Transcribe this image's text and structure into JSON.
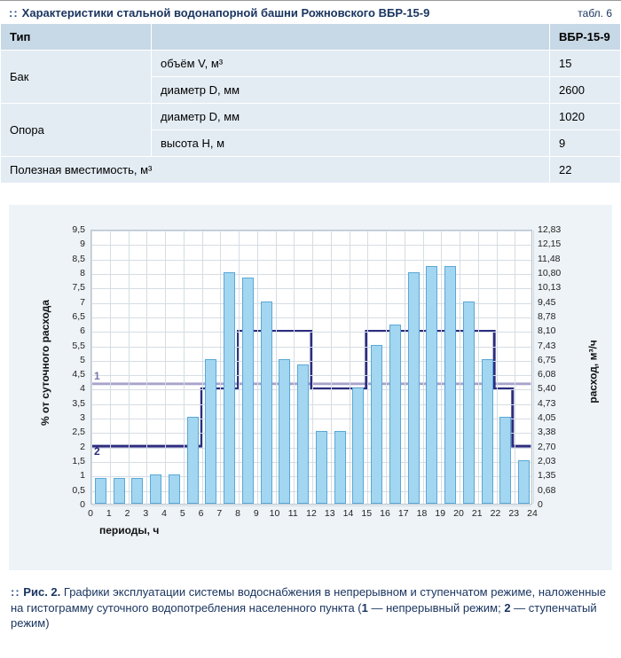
{
  "table": {
    "title": "Характеристики стальной водонапорной башни Рожновского ВБР-15-9",
    "label": "табл. 6",
    "head": {
      "c1": "Тип",
      "c4": "ВБР-15-9"
    },
    "rows": [
      {
        "g": "Бак",
        "p": "объём V, м³",
        "v": "15"
      },
      {
        "g": "",
        "p": "диаметр D, мм",
        "v": "2600"
      },
      {
        "g": "Опора",
        "p": "диаметр D, мм",
        "v": "1020"
      },
      {
        "g": "",
        "p": "высота H, м",
        "v": "9"
      }
    ],
    "footer": {
      "p": "Полезная вместимость, м³",
      "v": "22"
    }
  },
  "chart": {
    "type": "bar+line",
    "x_periods": [
      0,
      1,
      2,
      3,
      4,
      5,
      6,
      7,
      8,
      9,
      10,
      11,
      12,
      13,
      14,
      15,
      16,
      17,
      18,
      19,
      20,
      21,
      22,
      23,
      24
    ],
    "y_left": {
      "min": 0,
      "max": 9.5,
      "step": 0.5,
      "ticks": [
        "0",
        "0,5",
        "1",
        "1,5",
        "2",
        "2,5",
        "3",
        "3,5",
        "4",
        "4,5",
        "5",
        "5,5",
        "6",
        "6,5",
        "7",
        "7,5",
        "8",
        "8,5",
        "9",
        "9,5"
      ],
      "label": "% от суточного расхода"
    },
    "y_right": {
      "ticks": [
        "0",
        "0,68",
        "1,35",
        "2,03",
        "2,70",
        "3,38",
        "4,05",
        "4,73",
        "5,40",
        "6,08",
        "6,75",
        "7,43",
        "8,10",
        "8,78",
        "9,45",
        "10,13",
        "10,80",
        "11,48",
        "12,15",
        "12,83"
      ],
      "label": "расход, м³/ч"
    },
    "x_label": "периоды, ч",
    "bars": {
      "values": [
        0.9,
        0.9,
        0.9,
        1,
        1,
        3,
        5,
        8,
        7.8,
        7,
        5,
        4.8,
        2.5,
        2.5,
        4,
        5.5,
        6.2,
        8,
        8.2,
        8.2,
        7,
        5,
        3,
        1.5
      ],
      "fill": "#a3d6f0",
      "stroke": "#5aa8d6",
      "width_frac": 0.62
    },
    "line1": {
      "value": 4.17,
      "color": "#a7a3cc",
      "width": 3,
      "label": "1"
    },
    "line2": {
      "points": [
        [
          0,
          2
        ],
        [
          6,
          2
        ],
        [
          6,
          4
        ],
        [
          8,
          4
        ],
        [
          8,
          6
        ],
        [
          12,
          6
        ],
        [
          12,
          4
        ],
        [
          15,
          4
        ],
        [
          15,
          6
        ],
        [
          22,
          6
        ],
        [
          22,
          4
        ],
        [
          23,
          4
        ],
        [
          23,
          2
        ],
        [
          24,
          2
        ]
      ],
      "color": "#2c2c80",
      "width": 3,
      "label": "2"
    },
    "background": "#ffffff",
    "panel_bg": "#eef3f7",
    "grid_color": "#d5dde4",
    "label_fontsize": 10.5,
    "axis_fontsize": 12
  },
  "caption": {
    "prefix": "Рис. 2.",
    "text": "Графики эксплуатации системы водоснабжения в непрерывном и ступенчатом режиме, наложенные на гистограмму суточного водопотребления населенного пункта (",
    "l1": "1",
    "l1t": " — непрерывный режим; ",
    "l2": "2",
    "l2t": " — ступенчатый режим)"
  }
}
